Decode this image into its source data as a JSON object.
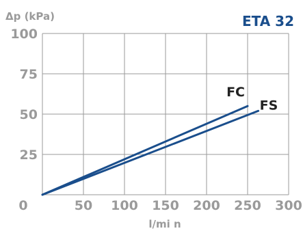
{
  "model_label": "ETA 32",
  "colors": {
    "series": "#1a4e8c",
    "grid": "#9a9a9a",
    "axis_text": "#9a9a9a"
  },
  "chart_data": {
    "type": "line",
    "ylabel": "Δp (kPa)",
    "xlabel": "l/mi n",
    "xlim": [
      0,
      300
    ],
    "ylim": [
      0,
      100
    ],
    "xticks": [
      0,
      50,
      100,
      150,
      200,
      250,
      300
    ],
    "yticks": [
      0,
      25,
      50,
      75,
      100
    ],
    "grid": true,
    "series": [
      {
        "name": "FC",
        "x": [
          0,
          250
        ],
        "y": [
          0,
          55
        ]
      },
      {
        "name": "FS",
        "x": [
          0,
          263
        ],
        "y": [
          0,
          52
        ]
      }
    ]
  }
}
